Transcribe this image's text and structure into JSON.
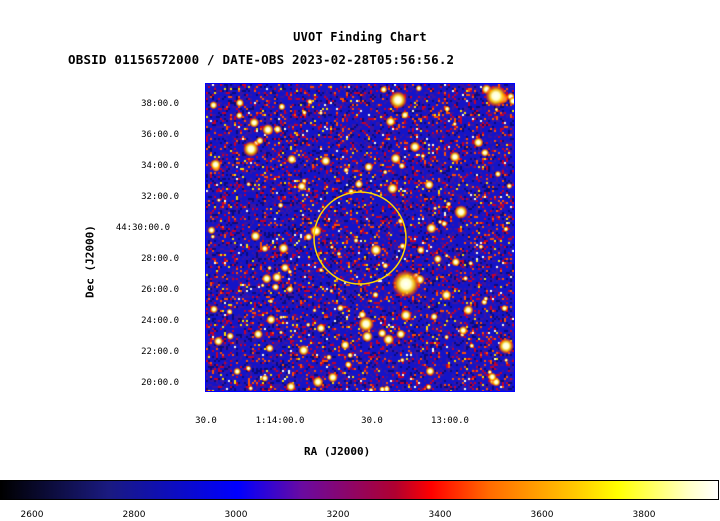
{
  "title": "UVOT Finding Chart",
  "subtitle": "OBSID 01156572000 / DATE-OBS 2023-02-28T05:56:56.2",
  "dec_axis": {
    "label": "Dec (J2000)",
    "ticks": [
      "38:00.0",
      "36:00.0",
      "34:00.0",
      "32:00.0",
      "44:30:00.0",
      "28:00.0",
      "26:00.0",
      "24:00.0",
      "22:00.0",
      "20:00.0"
    ]
  },
  "ra_axis": {
    "label": "RA (J2000)",
    "ticks": [
      "30.0",
      "1:14:00.0",
      "30.0",
      "13:00.0"
    ]
  },
  "colorbar": {
    "ticks": [
      "2600",
      "2800",
      "3000",
      "3200",
      "3400",
      "3600",
      "3800"
    ],
    "colors": [
      "#000000",
      "#0000ff",
      "#ff0000",
      "#ffff00",
      "#ffffff"
    ]
  },
  "marker": {
    "shape": "circle",
    "color": "#ffd700"
  }
}
